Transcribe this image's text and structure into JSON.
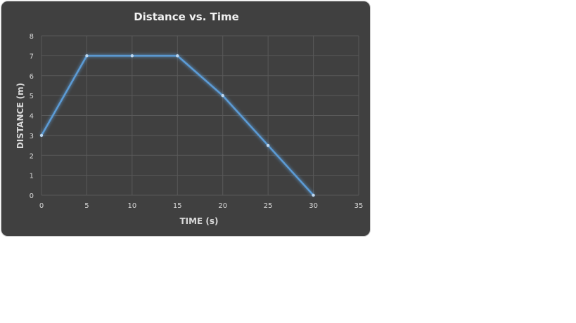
{
  "chart_data": {
    "type": "line",
    "title": "Distance vs. Time",
    "xlabel": "TIME (s)",
    "ylabel": "DISTANCE (m)",
    "xlim": [
      0,
      35
    ],
    "ylim": [
      0,
      8
    ],
    "xticks": [
      0,
      5,
      10,
      15,
      20,
      25,
      30,
      35
    ],
    "yticks": [
      0,
      1,
      2,
      3,
      4,
      5,
      6,
      7,
      8
    ],
    "grid": true,
    "legend": "none",
    "series": [
      {
        "x": [
          0,
          5,
          10,
          15,
          20,
          25,
          30
        ],
        "y": [
          3,
          7,
          7,
          7,
          5,
          2.5,
          0
        ]
      }
    ]
  },
  "colors": {
    "background": "#404040",
    "line": "#5b9bd5",
    "gridline": "#595959",
    "tick_text": "#d9d9d9",
    "title_text": "#f2f2f2"
  }
}
